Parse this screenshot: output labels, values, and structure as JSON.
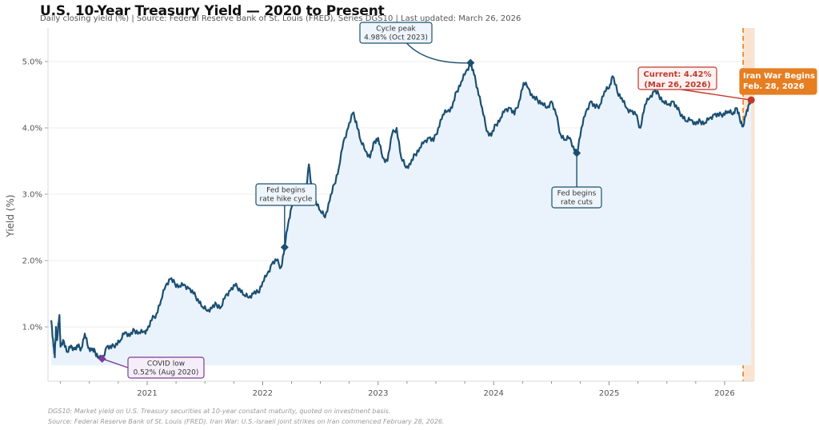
{
  "chart_data": {
    "type": "line",
    "title": "U.S. 10-Year Treasury Yield — 2020 to Present",
    "subtitle": "Daily closing yield (%)  |  Source: Federal Reserve Bank of St. Louis (FRED), Series DGS10  |  Last updated: March 26, 2026",
    "xlabel": "",
    "ylabel": "Yield (%)",
    "ylim": [
      0.0,
      5.5
    ],
    "xlim": [
      2020.1,
      2026.3
    ],
    "grid": true,
    "y_ticks": [
      {
        "value": 1.0,
        "label": "1.0%"
      },
      {
        "value": 2.0,
        "label": "2.0%"
      },
      {
        "value": 3.0,
        "label": "3.0%"
      },
      {
        "value": 4.0,
        "label": "4.0%"
      },
      {
        "value": 5.0,
        "label": "5.0%"
      }
    ],
    "x_ticks": [
      {
        "value": 2021,
        "label": "2021"
      },
      {
        "value": 2022,
        "label": "2022"
      },
      {
        "value": 2023,
        "label": "2023"
      },
      {
        "value": 2024,
        "label": "2024"
      },
      {
        "value": 2025,
        "label": "2025"
      },
      {
        "value": 2026,
        "label": "2026"
      }
    ],
    "series": [
      {
        "name": "DGS10",
        "color": "#1b4f72",
        "fill_color": "#eaf3fc",
        "points": [
          [
            2020.17,
            1.1
          ],
          [
            2020.19,
            0.7
          ],
          [
            2020.2,
            0.54
          ],
          [
            2020.21,
            1.0
          ],
          [
            2020.22,
            0.8
          ],
          [
            2020.24,
            1.18
          ],
          [
            2020.25,
            0.7
          ],
          [
            2020.28,
            0.78
          ],
          [
            2020.31,
            0.62
          ],
          [
            2020.34,
            0.72
          ],
          [
            2020.37,
            0.66
          ],
          [
            2020.4,
            0.7
          ],
          [
            2020.43,
            0.68
          ],
          [
            2020.46,
            0.9
          ],
          [
            2020.49,
            0.68
          ],
          [
            2020.52,
            0.65
          ],
          [
            2020.55,
            0.62
          ],
          [
            2020.58,
            0.55
          ],
          [
            2020.61,
            0.52
          ],
          [
            2020.65,
            0.7
          ],
          [
            2020.69,
            0.68
          ],
          [
            2020.73,
            0.75
          ],
          [
            2020.77,
            0.8
          ],
          [
            2020.81,
            0.92
          ],
          [
            2020.85,
            0.86
          ],
          [
            2020.89,
            0.95
          ],
          [
            2020.93,
            0.92
          ],
          [
            2020.97,
            0.93
          ],
          [
            2021.0,
            0.95
          ],
          [
            2021.04,
            1.1
          ],
          [
            2021.08,
            1.2
          ],
          [
            2021.12,
            1.4
          ],
          [
            2021.16,
            1.62
          ],
          [
            2021.2,
            1.72
          ],
          [
            2021.24,
            1.65
          ],
          [
            2021.28,
            1.62
          ],
          [
            2021.32,
            1.64
          ],
          [
            2021.36,
            1.58
          ],
          [
            2021.4,
            1.5
          ],
          [
            2021.44,
            1.42
          ],
          [
            2021.48,
            1.3
          ],
          [
            2021.52,
            1.24
          ],
          [
            2021.56,
            1.28
          ],
          [
            2021.6,
            1.34
          ],
          [
            2021.64,
            1.3
          ],
          [
            2021.68,
            1.48
          ],
          [
            2021.72,
            1.55
          ],
          [
            2021.76,
            1.62
          ],
          [
            2021.8,
            1.58
          ],
          [
            2021.84,
            1.48
          ],
          [
            2021.88,
            1.44
          ],
          [
            2021.92,
            1.5
          ],
          [
            2021.96,
            1.52
          ],
          [
            2022.0,
            1.68
          ],
          [
            2022.04,
            1.8
          ],
          [
            2022.08,
            1.95
          ],
          [
            2022.12,
            2.0
          ],
          [
            2022.16,
            1.9
          ],
          [
            2022.19,
            2.2
          ],
          [
            2022.22,
            2.55
          ],
          [
            2022.25,
            2.8
          ],
          [
            2022.29,
            2.9
          ],
          [
            2022.33,
            2.95
          ],
          [
            2022.37,
            3.0
          ],
          [
            2022.4,
            3.45
          ],
          [
            2022.43,
            3.0
          ],
          [
            2022.46,
            2.9
          ],
          [
            2022.5,
            2.75
          ],
          [
            2022.54,
            2.65
          ],
          [
            2022.58,
            2.9
          ],
          [
            2022.62,
            3.15
          ],
          [
            2022.66,
            3.4
          ],
          [
            2022.7,
            3.8
          ],
          [
            2022.74,
            4.0
          ],
          [
            2022.78,
            4.22
          ],
          [
            2022.81,
            4.1
          ],
          [
            2022.85,
            3.8
          ],
          [
            2022.89,
            3.65
          ],
          [
            2022.93,
            3.55
          ],
          [
            2022.97,
            3.8
          ],
          [
            2023.0,
            3.85
          ],
          [
            2023.04,
            3.55
          ],
          [
            2023.08,
            3.5
          ],
          [
            2023.12,
            3.9
          ],
          [
            2023.16,
            4.0
          ],
          [
            2023.2,
            3.55
          ],
          [
            2023.24,
            3.4
          ],
          [
            2023.28,
            3.45
          ],
          [
            2023.32,
            3.6
          ],
          [
            2023.36,
            3.7
          ],
          [
            2023.4,
            3.8
          ],
          [
            2023.44,
            3.85
          ],
          [
            2023.48,
            3.8
          ],
          [
            2023.52,
            4.0
          ],
          [
            2023.56,
            4.2
          ],
          [
            2023.6,
            4.25
          ],
          [
            2023.64,
            4.3
          ],
          [
            2023.68,
            4.55
          ],
          [
            2023.72,
            4.7
          ],
          [
            2023.76,
            4.85
          ],
          [
            2023.8,
            4.98
          ],
          [
            2023.83,
            4.8
          ],
          [
            2023.86,
            4.6
          ],
          [
            2023.9,
            4.3
          ],
          [
            2023.94,
            3.95
          ],
          [
            2023.98,
            3.88
          ],
          [
            2024.02,
            4.05
          ],
          [
            2024.06,
            4.15
          ],
          [
            2024.1,
            4.28
          ],
          [
            2024.14,
            4.3
          ],
          [
            2024.18,
            4.2
          ],
          [
            2024.22,
            4.4
          ],
          [
            2024.26,
            4.68
          ],
          [
            2024.3,
            4.6
          ],
          [
            2024.34,
            4.45
          ],
          [
            2024.38,
            4.42
          ],
          [
            2024.42,
            4.38
          ],
          [
            2024.46,
            4.3
          ],
          [
            2024.5,
            4.4
          ],
          [
            2024.54,
            4.2
          ],
          [
            2024.58,
            3.9
          ],
          [
            2024.62,
            3.82
          ],
          [
            2024.66,
            3.85
          ],
          [
            2024.7,
            3.65
          ],
          [
            2024.72,
            3.62
          ],
          [
            2024.76,
            4.0
          ],
          [
            2024.8,
            4.25
          ],
          [
            2024.84,
            4.4
          ],
          [
            2024.88,
            4.3
          ],
          [
            2024.92,
            4.35
          ],
          [
            2024.96,
            4.55
          ],
          [
            2025.0,
            4.6
          ],
          [
            2025.03,
            4.78
          ],
          [
            2025.07,
            4.55
          ],
          [
            2025.11,
            4.45
          ],
          [
            2025.15,
            4.3
          ],
          [
            2025.19,
            4.25
          ],
          [
            2025.23,
            4.2
          ],
          [
            2025.27,
            4.0
          ],
          [
            2025.31,
            4.35
          ],
          [
            2025.35,
            4.45
          ],
          [
            2025.39,
            4.55
          ],
          [
            2025.43,
            4.5
          ],
          [
            2025.47,
            4.4
          ],
          [
            2025.51,
            4.35
          ],
          [
            2025.55,
            4.4
          ],
          [
            2025.59,
            4.28
          ],
          [
            2025.63,
            4.2
          ],
          [
            2025.67,
            4.1
          ],
          [
            2025.71,
            4.12
          ],
          [
            2025.75,
            4.05
          ],
          [
            2025.79,
            4.1
          ],
          [
            2025.83,
            4.08
          ],
          [
            2025.87,
            4.15
          ],
          [
            2025.91,
            4.2
          ],
          [
            2025.95,
            4.18
          ],
          [
            2025.99,
            4.22
          ],
          [
            2026.03,
            4.25
          ],
          [
            2026.07,
            4.2
          ],
          [
            2026.1,
            4.3
          ],
          [
            2026.13,
            4.15
          ],
          [
            2026.16,
            4.02
          ],
          [
            2026.19,
            4.25
          ],
          [
            2026.21,
            4.35
          ],
          [
            2026.23,
            4.42
          ]
        ]
      }
    ],
    "shaded_region": {
      "label": "Iran War",
      "start": 2026.16,
      "end": 2026.26,
      "color": "#f5cda8"
    },
    "vline": {
      "x": 2026.16,
      "color": "#e67e22",
      "style": "dashed"
    },
    "annotations": [
      {
        "id": "covid-low",
        "lines": [
          "COVID low",
          "0.52%  (Aug 2020)"
        ],
        "x": 2020.61,
        "y": 0.52,
        "color": "#7d3c98",
        "bg": "#f5eef8",
        "marker": "diamond"
      },
      {
        "id": "hike",
        "lines": [
          "Fed begins",
          "rate hike cycle"
        ],
        "x": 2022.19,
        "y": 2.2,
        "color": "#1b4f72",
        "bg": "#eef5fb",
        "marker": "diamond"
      },
      {
        "id": "peak",
        "lines": [
          "Cycle peak",
          "4.98%  (Oct 2023)"
        ],
        "x": 2023.8,
        "y": 4.98,
        "color": "#1b4f72",
        "bg": "#eef5fb",
        "marker": "diamond"
      },
      {
        "id": "cuts",
        "lines": [
          "Fed begins",
          "rate cuts"
        ],
        "x": 2024.72,
        "y": 3.62,
        "color": "#1b4f72",
        "bg": "#eef5fb",
        "marker": "diamond"
      },
      {
        "id": "current",
        "lines": [
          "Current: 4.42%",
          "(Mar 26, 2026)"
        ],
        "x": 2026.23,
        "y": 4.42,
        "color": "#c0392b",
        "bg": "#fdf2f2",
        "marker": "circle"
      },
      {
        "id": "iran",
        "lines": [
          "Iran War Begins",
          "Feb. 28, 2026"
        ],
        "x": 2026.16,
        "y": 5.0,
        "color": "#ffffff",
        "bg": "#e67e22",
        "marker": "none"
      }
    ]
  },
  "footnotes": [
    "DGS10: Market yield on U.S. Treasury securities at 10-year constant maturity, quoted on investment basis.",
    "Source: Federal Reserve Bank of St. Louis (FRED). Iran War: U.S.-Israeli joint strikes on Iran commenced February 28, 2026."
  ]
}
